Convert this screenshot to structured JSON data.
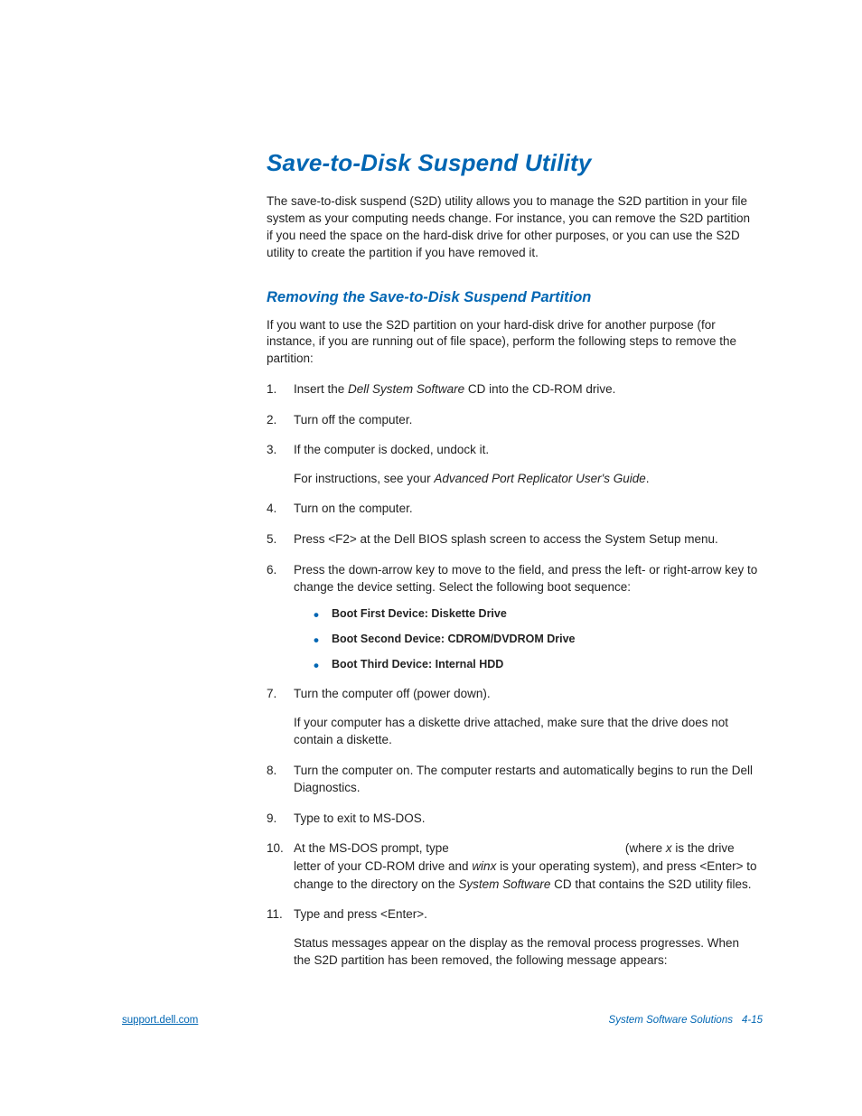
{
  "title": "Save-to-Disk Suspend Utility",
  "intro": "The save-to-disk suspend (S2D) utility allows you to manage the S2D partition in your file system as your computing needs change. For instance, you can remove the S2D partition if you need the space on the hard-disk drive for other purposes, or you can use the S2D utility to create the partition if you have removed it.",
  "subtitle": "Removing the Save-to-Disk Suspend Partition",
  "subintro": "If you want to use the S2D partition on your hard-disk drive for another purpose (for instance, if you are running out of file space), perform the following steps to remove the partition:",
  "steps": {
    "s1_a": "Insert the ",
    "s1_i": "Dell System Software",
    "s1_b": " CD into the CD-ROM drive.",
    "s2": "Turn off the computer.",
    "s3": "If the computer is docked, undock it.",
    "s3_note_a": "For instructions, see your ",
    "s3_note_i": "Advanced Port Replicator User's Guide",
    "s3_note_b": ".",
    "s4": "Turn on the computer.",
    "s5": "Press <F2> at the Dell BIOS splash screen to access the System Setup menu.",
    "s6": "Press the down-arrow key to move to the field, and press the left- or right-arrow key to change the device setting. Select the following boot sequence:",
    "s6_b1": "Boot First Device:  Diskette Drive",
    "s6_b2": "Boot Second Device:  CDROM/DVDROM Drive",
    "s6_b3": "Boot Third Device:  Internal HDD",
    "s7": "Turn the computer off (power down).",
    "s7_note": "If your computer has a diskette drive attached, make sure that the drive does not contain a diskette.",
    "s8": "Turn the computer on. The computer restarts and automatically begins to run the Dell Diagnostics.",
    "s9": "Type    to exit to MS-DOS.",
    "s10_a": "At the MS-DOS prompt, type ",
    "s10_gap": "                                                   ",
    "s10_b": "(where ",
    "s10_x": "x",
    "s10_c": " is the drive letter of your CD-ROM drive and ",
    "s10_winx": "winx",
    "s10_d": " is your operating system), and press <Enter> to change to the directory on the ",
    "s10_sw": "System Software",
    "s10_e": " CD that contains the S2D utility files.",
    "s11": "Type            and press <Enter>.",
    "s11_note": "Status messages appear on the display as the removal process progresses. When the S2D partition has been removed, the following message appears:"
  },
  "footer": {
    "left": "support.dell.com",
    "right_label": "System Software Solutions",
    "right_page": "4-15"
  }
}
